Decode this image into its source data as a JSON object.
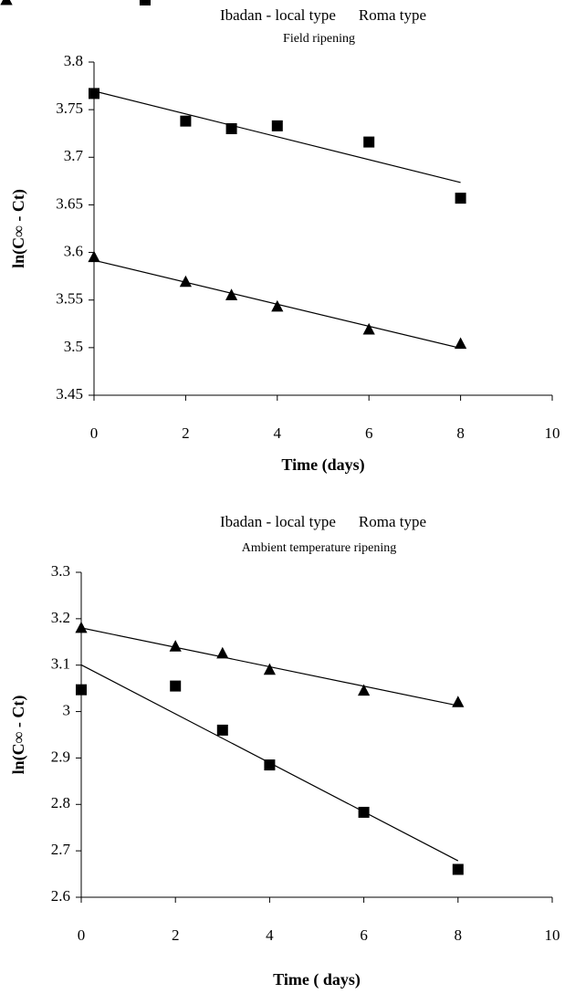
{
  "chart_data": [
    {
      "type": "scatter",
      "subtitle": "Field ripening",
      "x_label": "Time (days)",
      "y_label": "ln(C∞ - Ct)",
      "x": [
        0,
        2,
        3,
        4,
        6,
        8
      ],
      "series": [
        {
          "name": "Ibadan - local type",
          "color": "#000000",
          "marker": "triangle",
          "trendline": "linear",
          "values": [
            3.595,
            3.569,
            3.555,
            3.543,
            3.519,
            3.504
          ]
        },
        {
          "name": "Roma type",
          "color": "#000000",
          "marker": "square",
          "trendline": "linear",
          "values": [
            3.767,
            3.738,
            3.73,
            3.733,
            3.716,
            3.657
          ]
        }
      ],
      "xlim": [
        0,
        10
      ],
      "xticks": [
        0,
        2,
        4,
        6,
        8,
        10
      ],
      "ylim": [
        3.45,
        3.8
      ],
      "yticks": [
        3.45,
        3.5,
        3.55,
        3.6,
        3.65,
        3.7,
        3.75,
        3.8
      ],
      "grid": false,
      "legend": "top"
    },
    {
      "type": "scatter",
      "subtitle": "Ambient temperature ripening",
      "x_label": "Time ( days)",
      "y_label": "ln(C∞ - Ct)",
      "x": [
        0,
        2,
        3,
        4,
        6,
        8
      ],
      "series": [
        {
          "name": "Ibadan - local type",
          "color": "#000000",
          "marker": "triangle",
          "trendline": "linear",
          "values": [
            3.18,
            3.14,
            3.125,
            3.09,
            3.045,
            3.02
          ]
        },
        {
          "name": "Roma type",
          "color": "#000000",
          "marker": "square",
          "trendline": "linear",
          "values": [
            3.047,
            3.055,
            2.96,
            2.885,
            2.783,
            2.66
          ]
        }
      ],
      "xlim": [
        0,
        10
      ],
      "xticks": [
        0,
        2,
        4,
        6,
        8,
        10
      ],
      "ylim": [
        2.6,
        3.3
      ],
      "yticks": [
        2.6,
        2.7,
        2.8,
        2.9,
        3,
        3.1,
        3.2,
        3.3
      ],
      "grid": false,
      "legend": "top"
    }
  ]
}
